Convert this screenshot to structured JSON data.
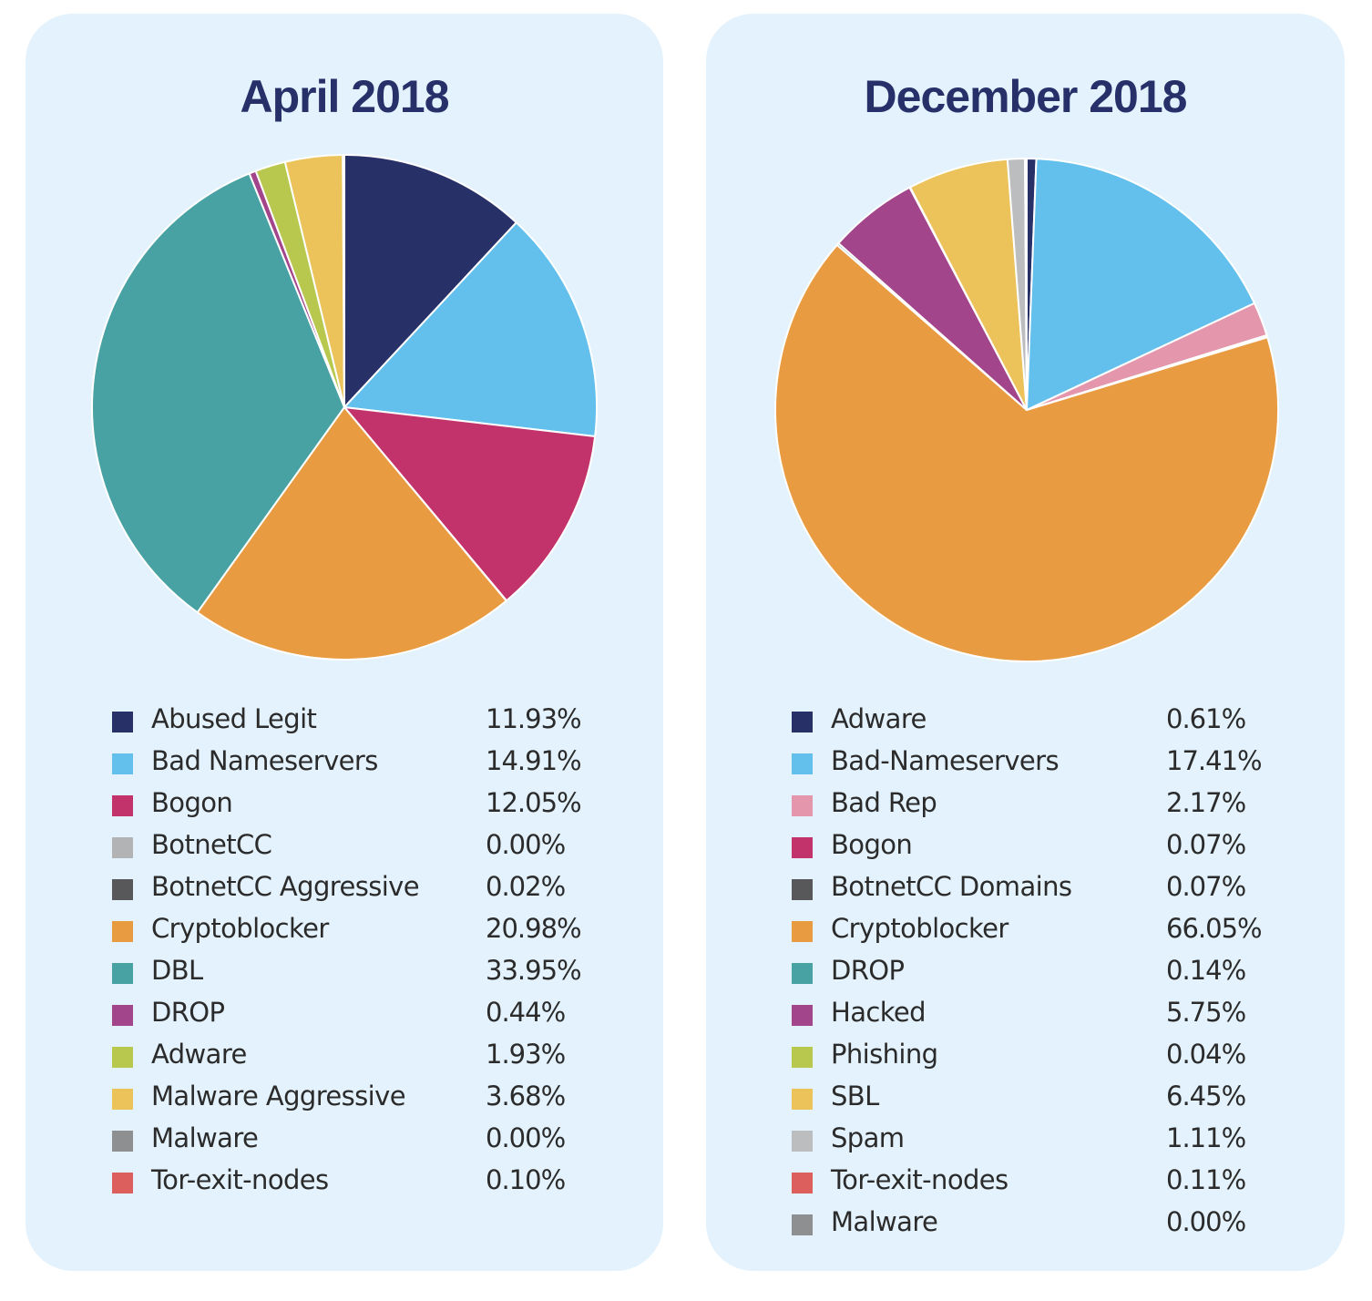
{
  "chart_data": [
    {
      "type": "pie",
      "title": "April 2018",
      "start": "12 o'clock, clockwise",
      "series": [
        {
          "name": "Abused Legit",
          "label": "11.93%",
          "value": 11.93,
          "color": "#283068"
        },
        {
          "name": "Bad Nameservers",
          "label": "14.91%",
          "value": 14.91,
          "color": "#63c0ec"
        },
        {
          "name": "Bogon",
          "label": "12.05%",
          "value": 12.05,
          "color": "#c3336b"
        },
        {
          "name": "BotnetCC",
          "label": "0.00%",
          "value": 0.0,
          "color": "#b1b3b5"
        },
        {
          "name": "BotnetCC Aggressive",
          "label": "0.02%",
          "value": 0.02,
          "color": "#58585a"
        },
        {
          "name": "Cryptoblocker",
          "label": "20.98%",
          "value": 20.98,
          "color": "#e99b42"
        },
        {
          "name": "DBL",
          "label": "33.95%",
          "value": 33.95,
          "color": "#48a1a2"
        },
        {
          "name": "DROP",
          "label": "0.44%",
          "value": 0.44,
          "color": "#a2458a"
        },
        {
          "name": "Adware",
          "label": "1.93%",
          "value": 1.93,
          "color": "#b8c84e"
        },
        {
          "name": "Malware Aggressive",
          "label": "3.68%",
          "value": 3.68,
          "color": "#ebc35a"
        },
        {
          "name": "Malware",
          "label": "0.00%",
          "value": 0.0,
          "color": "#8e8f91"
        },
        {
          "name": "Tor-exit-nodes",
          "label": "0.10%",
          "value": 0.1,
          "color": "#dc5f5e"
        }
      ]
    },
    {
      "type": "pie",
      "title": "December 2018",
      "start": "12 o'clock, clockwise",
      "series": [
        {
          "name": "Adware",
          "label": "0.61%",
          "value": 0.61,
          "color": "#283068"
        },
        {
          "name": "Bad-Nameservers",
          "label": "17.41%",
          "value": 17.41,
          "color": "#63c0ec"
        },
        {
          "name": "Bad Rep",
          "label": "2.17%",
          "value": 2.17,
          "color": "#e497ac"
        },
        {
          "name": "Bogon",
          "label": "0.07%",
          "value": 0.07,
          "color": "#c3336b"
        },
        {
          "name": "BotnetCC Domains",
          "label": "0.07%",
          "value": 0.07,
          "color": "#58585a"
        },
        {
          "name": "Cryptoblocker",
          "label": "66.05%",
          "value": 66.05,
          "color": "#e99b42"
        },
        {
          "name": "DROP",
          "label": "0.14%",
          "value": 0.14,
          "color": "#48a1a2"
        },
        {
          "name": "Hacked",
          "label": "5.75%",
          "value": 5.75,
          "color": "#a2458a"
        },
        {
          "name": "Phishing",
          "label": "0.04%",
          "value": 0.04,
          "color": "#b8c84e"
        },
        {
          "name": "SBL",
          "label": "6.45%",
          "value": 6.45,
          "color": "#ebc35a"
        },
        {
          "name": "Spam",
          "label": "1.11%",
          "value": 1.11,
          "color": "#bcbdbf"
        },
        {
          "name": "Tor-exit-nodes",
          "label": "0.11%",
          "value": 0.11,
          "color": "#dc5f5e"
        },
        {
          "name": "Malware",
          "label": "0.00%",
          "value": 0.0,
          "color": "#8e8f91"
        }
      ]
    }
  ]
}
